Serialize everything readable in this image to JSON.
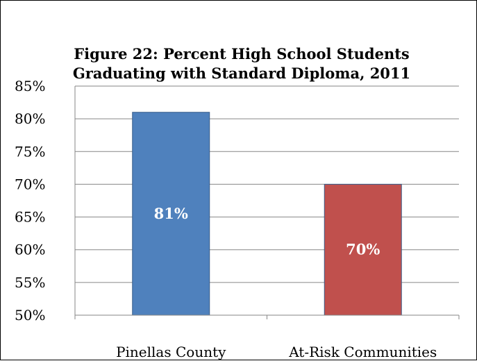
{
  "chart_data": {
    "type": "bar",
    "title_lines": [
      "Figure 22: Percent High School Students",
      "Graduating with Standard Diploma, 2011"
    ],
    "categories": [
      "Pinellas County",
      "At-Risk Communities"
    ],
    "values": [
      81,
      70
    ],
    "data_labels": [
      "81%",
      "70%"
    ],
    "bar_colors": [
      "#4f81bd",
      "#c0504d"
    ],
    "ylim": [
      50,
      85
    ],
    "ytick_values": [
      85,
      80,
      75,
      70,
      65,
      60,
      55,
      50
    ],
    "ytick_labels": [
      "85%",
      "80%",
      "75%",
      "70%",
      "65%",
      "60%",
      "55%",
      "50%"
    ],
    "grid": true,
    "xlabel": "",
    "ylabel": ""
  }
}
